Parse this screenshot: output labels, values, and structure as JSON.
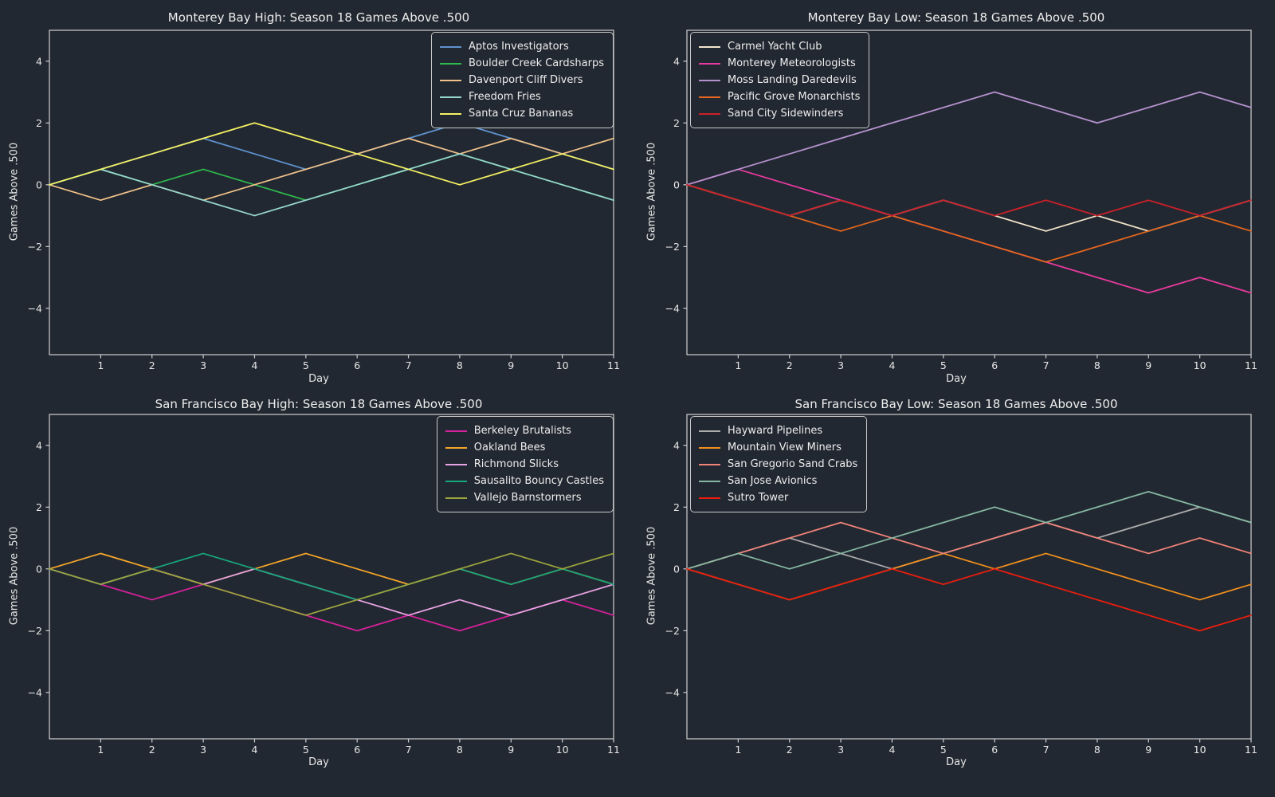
{
  "figure": {
    "background": "#222831",
    "text_color": "#E6E6E6",
    "spine_color": "#CFCFCF"
  },
  "chart_data": [
    {
      "type": "line",
      "title": "Monterey Bay High: Season 18 Games Above .500",
      "xlabel": "Day",
      "ylabel": "Games Above .500",
      "x": [
        0,
        1,
        2,
        3,
        4,
        5,
        6,
        7,
        8,
        9,
        10,
        11
      ],
      "xticks": [
        1,
        2,
        3,
        4,
        5,
        6,
        7,
        8,
        9,
        10,
        11
      ],
      "yticks": [
        -4,
        -2,
        0,
        2,
        4
      ],
      "xlim": [
        0,
        11
      ],
      "ylim": [
        -5.5,
        5.0
      ],
      "grid": false,
      "legend_position": "upper-right",
      "series": [
        {
          "name": "Aptos Investigators",
          "color": "#5E92CF",
          "values": [
            0,
            0.5,
            1,
            1.5,
            1,
            0.5,
            1,
            1.5,
            2,
            1.5,
            1,
            0.5
          ]
        },
        {
          "name": "Boulder Creek Cardsharps",
          "color": "#2DB94D",
          "values": [
            0,
            0.5,
            0,
            0.5,
            0,
            -0.5,
            0,
            0.5,
            1,
            0.5,
            0,
            -0.5
          ]
        },
        {
          "name": "Davenport Cliff Divers",
          "color": "#EFC189",
          "values": [
            0,
            -0.5,
            0,
            -0.5,
            0,
            0.5,
            1,
            1.5,
            1,
            1.5,
            1,
            1.5
          ]
        },
        {
          "name": "Freedom Fries",
          "color": "#96D6CD",
          "values": [
            0,
            0.5,
            0,
            -0.5,
            -1,
            -0.5,
            0,
            0.5,
            1,
            0.5,
            0,
            -0.5
          ]
        },
        {
          "name": "Santa Cruz Bananas",
          "color": "#F5F163",
          "values": [
            0,
            0.5,
            1,
            1.5,
            2,
            1.5,
            1,
            0.5,
            0,
            0.5,
            1,
            0.5
          ]
        }
      ]
    },
    {
      "type": "line",
      "title": "Monterey Bay Low: Season 18 Games Above .500",
      "xlabel": "Day",
      "ylabel": "Games Above .500",
      "x": [
        0,
        1,
        2,
        3,
        4,
        5,
        6,
        7,
        8,
        9,
        10,
        11
      ],
      "xticks": [
        1,
        2,
        3,
        4,
        5,
        6,
        7,
        8,
        9,
        10,
        11
      ],
      "yticks": [
        -4,
        -2,
        0,
        2,
        4
      ],
      "xlim": [
        0,
        11
      ],
      "ylim": [
        -5.5,
        5.0
      ],
      "grid": false,
      "legend_position": "upper-left",
      "series": [
        {
          "name": "Carmel Yacht Club",
          "color": "#F2E5CB",
          "values": [
            0,
            -0.5,
            -1,
            -0.5,
            -1,
            -0.5,
            -1,
            -1.5,
            -1,
            -1.5,
            -1,
            -0.5
          ]
        },
        {
          "name": "Monterey Meteorologists",
          "color": "#E83A9F",
          "values": [
            0,
            0.5,
            0,
            -0.5,
            -1,
            -1.5,
            -2,
            -2.5,
            -3,
            -3.5,
            -3,
            -3.5
          ]
        },
        {
          "name": "Moss Landing Daredevils",
          "color": "#B592CE",
          "values": [
            0,
            0.5,
            1,
            1.5,
            2,
            2.5,
            3,
            2.5,
            2,
            2.5,
            3,
            2.5
          ]
        },
        {
          "name": "Pacific Grove Monarchists",
          "color": "#E4661E",
          "values": [
            0,
            -0.5,
            -1,
            -1.5,
            -1,
            -1.5,
            -2,
            -2.5,
            -2,
            -1.5,
            -1,
            -1.5
          ]
        },
        {
          "name": "Sand City Sidewinders",
          "color": "#CE2029",
          "values": [
            0,
            -0.5,
            -1,
            -0.5,
            -1,
            -0.5,
            -1,
            -0.5,
            -1,
            -0.5,
            -1,
            -0.5
          ]
        }
      ]
    },
    {
      "type": "line",
      "title": "San Francisco Bay High: Season 18 Games Above .500",
      "xlabel": "Day",
      "ylabel": "Games Above .500",
      "x": [
        0,
        1,
        2,
        3,
        4,
        5,
        6,
        7,
        8,
        9,
        10,
        11
      ],
      "xticks": [
        1,
        2,
        3,
        4,
        5,
        6,
        7,
        8,
        9,
        10,
        11
      ],
      "yticks": [
        -4,
        -2,
        0,
        2,
        4
      ],
      "xlim": [
        0,
        11
      ],
      "ylim": [
        -5.5,
        5.0
      ],
      "grid": false,
      "legend_position": "upper-right",
      "series": [
        {
          "name": "Berkeley Brutalists",
          "color": "#D6219C",
          "values": [
            0,
            -0.5,
            -1,
            -0.5,
            -1,
            -1.5,
            -2,
            -1.5,
            -2,
            -1.5,
            -1,
            -1.5
          ]
        },
        {
          "name": "Oakland Bees",
          "color": "#F5A62A",
          "values": [
            0,
            0.5,
            0,
            -0.5,
            0,
            0.5,
            0,
            -0.5,
            0,
            -0.5,
            0,
            -0.5
          ]
        },
        {
          "name": "Richmond Slicks",
          "color": "#E8A2E3",
          "values": [
            0,
            -0.5,
            0,
            -0.5,
            0,
            -0.5,
            -1,
            -1.5,
            -1,
            -1.5,
            -1,
            -0.5
          ]
        },
        {
          "name": "Sausalito Bouncy Castles",
          "color": "#17A77C",
          "values": [
            0,
            -0.5,
            0,
            0.5,
            0,
            -0.5,
            -1,
            -0.5,
            0,
            -0.5,
            0,
            -0.5
          ]
        },
        {
          "name": "Vallejo Barnstormers",
          "color": "#9CA43D",
          "values": [
            0,
            -0.5,
            0,
            -0.5,
            -1,
            -1.5,
            -1,
            -0.5,
            0,
            0.5,
            0,
            0.5
          ]
        }
      ]
    },
    {
      "type": "line",
      "title": "San Francisco Bay Low: Season 18 Games Above .500",
      "xlabel": "Day",
      "ylabel": "Games Above .500",
      "x": [
        0,
        1,
        2,
        3,
        4,
        5,
        6,
        7,
        8,
        9,
        10,
        11
      ],
      "xticks": [
        1,
        2,
        3,
        4,
        5,
        6,
        7,
        8,
        9,
        10,
        11
      ],
      "yticks": [
        -4,
        -2,
        0,
        2,
        4
      ],
      "xlim": [
        0,
        11
      ],
      "ylim": [
        -5.5,
        5.0
      ],
      "grid": false,
      "legend_position": "upper-left",
      "series": [
        {
          "name": "Hayward Pipelines",
          "color": "#ACACAC",
          "values": [
            0,
            0.5,
            1,
            0.5,
            0,
            0.5,
            1,
            1.5,
            1,
            1.5,
            2,
            1.5
          ]
        },
        {
          "name": "Mountain View Miners",
          "color": "#F1901E",
          "values": [
            0,
            -0.5,
            -1,
            -0.5,
            0,
            0.5,
            0,
            0.5,
            0,
            -0.5,
            -1,
            -0.5
          ]
        },
        {
          "name": "San Gregorio Sand Crabs",
          "color": "#F28379",
          "values": [
            0,
            0.5,
            1,
            1.5,
            1,
            0.5,
            1,
            1.5,
            1,
            0.5,
            1,
            0.5
          ]
        },
        {
          "name": "San Jose Avionics",
          "color": "#85B7A2",
          "values": [
            0,
            0.5,
            0,
            0.5,
            1,
            1.5,
            2,
            1.5,
            2,
            2.5,
            2,
            1.5
          ]
        },
        {
          "name": "Sutro Tower",
          "color": "#EE1D0E",
          "values": [
            0,
            -0.5,
            -1,
            -0.5,
            0,
            -0.5,
            0,
            -0.5,
            -1,
            -1.5,
            -2,
            -1.5
          ]
        }
      ]
    }
  ]
}
